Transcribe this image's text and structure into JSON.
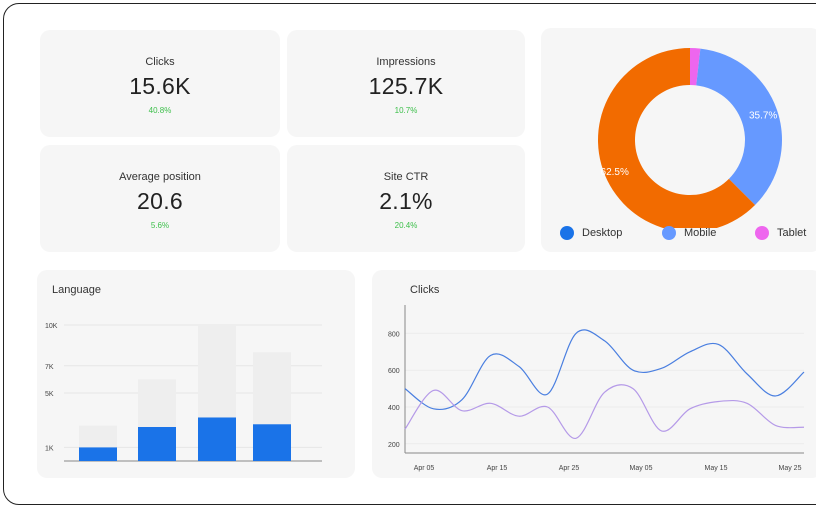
{
  "kpis": [
    {
      "label": "Clicks",
      "value": "15.6K",
      "delta": "40.8%"
    },
    {
      "label": "Impressions",
      "value": "125.7K",
      "delta": "10.7%"
    },
    {
      "label": "Average position",
      "value": "20.6",
      "delta": "5.6%"
    },
    {
      "label": "Site CTR",
      "value": "2.1%",
      "delta": "20.4%"
    }
  ],
  "device": {
    "slices": [
      {
        "name": "Desktop",
        "value": 62.5,
        "label": "62.5%",
        "color": "#f26b00"
      },
      {
        "name": "Mobile",
        "value": 35.7,
        "label": "35.7%",
        "color": "#6699ff"
      },
      {
        "name": "Tablet",
        "value": 1.8,
        "label": "",
        "color": "#ee66ee"
      }
    ]
  },
  "language_chart": {
    "title": "Language",
    "y_ticks": [
      "10K",
      "7K",
      "5K",
      "1K"
    ],
    "ylim": [
      0,
      10000
    ],
    "bars": [
      {
        "total": 2600,
        "part": 1000
      },
      {
        "total": 6000,
        "part": 2500
      },
      {
        "total": 10000,
        "part": 3200
      },
      {
        "total": 8000,
        "part": 2700
      }
    ],
    "colors": {
      "total": "#eeeeee",
      "part": "#1a73e8"
    }
  },
  "clicks_chart": {
    "title": "Clicks",
    "y_ticks": [
      "800",
      "600",
      "400",
      "200"
    ],
    "x_ticks": [
      "Apr 05",
      "Apr 15",
      "Apr 25",
      "May 05",
      "May 15",
      "May 25"
    ],
    "ylim": [
      150,
      900
    ],
    "series": [
      {
        "name": "blue",
        "color": "#4a7fe0",
        "values": [
          500,
          390,
          440,
          680,
          620,
          470,
          800,
          760,
          600,
          610,
          700,
          740,
          580,
          460,
          590
        ]
      },
      {
        "name": "purple",
        "color": "#b59ae8",
        "values": [
          280,
          490,
          380,
          420,
          350,
          400,
          230,
          480,
          500,
          270,
          390,
          430,
          420,
          300,
          290
        ]
      }
    ]
  }
}
